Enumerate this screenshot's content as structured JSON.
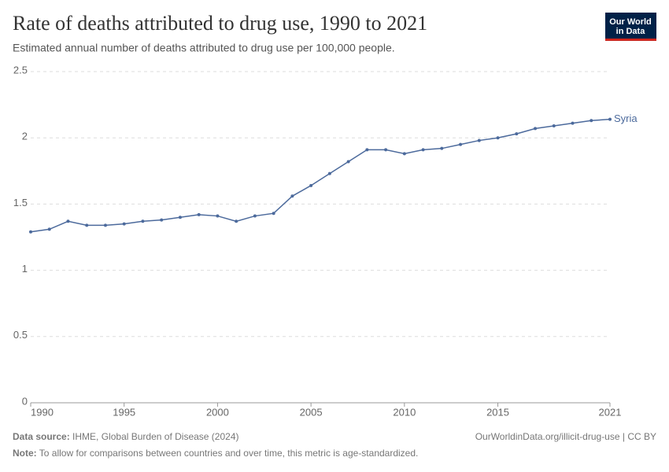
{
  "chart_data": {
    "type": "line",
    "title": "Rate of deaths attributed to drug use, 1990 to 2021",
    "subtitle": "Estimated annual number of deaths attributed to drug use per 100,000 people.",
    "x": [
      1990,
      1991,
      1992,
      1993,
      1994,
      1995,
      1996,
      1997,
      1998,
      1999,
      2000,
      2001,
      2002,
      2003,
      2004,
      2005,
      2006,
      2007,
      2008,
      2009,
      2010,
      2011,
      2012,
      2013,
      2014,
      2015,
      2016,
      2017,
      2018,
      2019,
      2020,
      2021
    ],
    "series": [
      {
        "name": "Syria",
        "color": "#4c6a9c",
        "values": [
          1.29,
          1.31,
          1.37,
          1.34,
          1.34,
          1.35,
          1.37,
          1.38,
          1.4,
          1.42,
          1.41,
          1.37,
          1.41,
          1.43,
          1.56,
          1.64,
          1.73,
          1.82,
          1.91,
          1.91,
          1.88,
          1.91,
          1.92,
          1.95,
          1.98,
          2.0,
          2.03,
          2.07,
          2.09,
          2.11,
          2.13,
          2.14
        ]
      }
    ],
    "xlim": [
      1990,
      2021
    ],
    "ylim": [
      0,
      2.5
    ],
    "xticks": [
      1990,
      1995,
      2000,
      2005,
      2010,
      2015,
      2021
    ],
    "yticks": [
      0,
      0.5,
      1,
      1.5,
      2,
      2.5
    ],
    "grid": true,
    "source_label": "Data source:",
    "source": "IHME, Global Burden of Disease (2024)",
    "note_label": "Note:",
    "note": "To allow for comparisons between countries and over time, this metric is age-standardized.",
    "url": "OurWorldinData.org/illicit-drug-use | CC BY",
    "logo": [
      "Our World",
      "in Data"
    ]
  }
}
